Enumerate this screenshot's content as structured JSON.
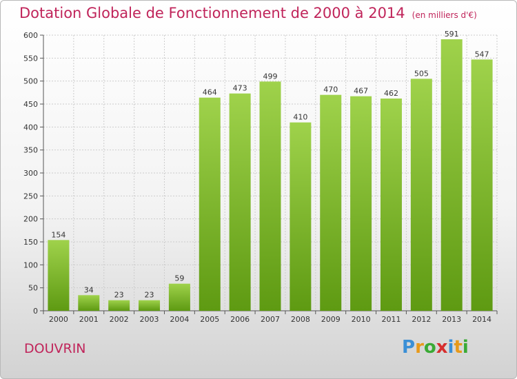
{
  "chart_data": {
    "type": "bar",
    "title": "Dotation Globale de Fonctionnement de 2000 à 2014",
    "subtitle": "(en milliers d'€)",
    "categories": [
      "2000",
      "2001",
      "2002",
      "2003",
      "2004",
      "2005",
      "2006",
      "2007",
      "2008",
      "2009",
      "2010",
      "2011",
      "2012",
      "2013",
      "2014"
    ],
    "values": [
      154,
      34,
      23,
      23,
      59,
      464,
      473,
      499,
      410,
      470,
      467,
      462,
      505,
      591,
      547
    ],
    "ylim": [
      0,
      600
    ],
    "yticks": [
      0,
      50,
      100,
      150,
      200,
      250,
      300,
      350,
      400,
      450,
      500,
      550,
      600
    ],
    "grid": true,
    "xlabel": "",
    "ylabel": ""
  },
  "commune": "DOUVRIN",
  "logo": "Proxiti",
  "colors": {
    "title": "#c0245a",
    "bar_top": "#9fd24b",
    "bar_bottom": "#5e9a12",
    "grid": "#cccccc",
    "logo_letters": [
      "#3a8fd6",
      "#e89a1a",
      "#3aaa35",
      "#d62e2e",
      "#3a8fd6",
      "#e89a1a",
      "#3aaa35"
    ]
  }
}
